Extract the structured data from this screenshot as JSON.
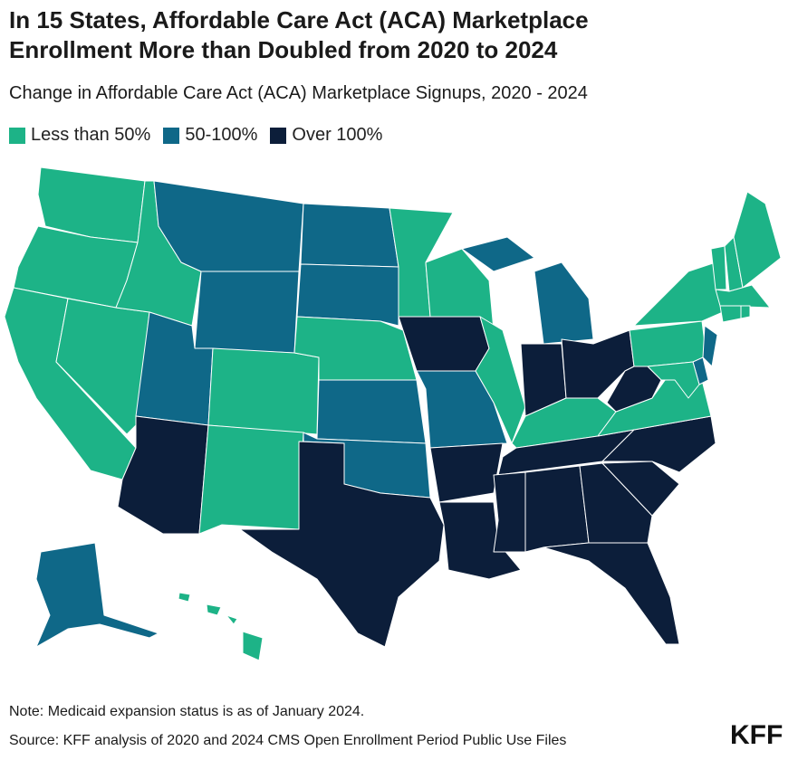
{
  "header": {
    "title_lines": [
      "In 15 States, Affordable Care Act (ACA) Marketplace",
      "Enrollment More than Doubled from 2020 to 2024"
    ],
    "subtitle": "Change in Affordable Care Act (ACA) Marketplace Signups, 2020 - 2024"
  },
  "map": {
    "legend": [
      {
        "name": "Less than 50%",
        "color": "#1db387"
      },
      {
        "name": "50-100%",
        "color": "#0f6888"
      },
      {
        "name": "Over 100%",
        "color": "#0c1e3a"
      }
    ],
    "state_groups": [
      0,
      0,
      0,
      0,
      0,
      1,
      1,
      1,
      2,
      0,
      0,
      1,
      1,
      0,
      1,
      1,
      2,
      0,
      2,
      1,
      2,
      2,
      0,
      0,
      1,
      2,
      2,
      0,
      2,
      2,
      2,
      2,
      2,
      2,
      2,
      0,
      2,
      0,
      0,
      1,
      1,
      0,
      0,
      0,
      0,
      0,
      0,
      0,
      1,
      0
    ]
  },
  "footer": {
    "note": "Note: Medicaid expansion status is as of January 2024.",
    "source": "Source: KFF analysis of 2020 and 2024 CMS Open Enrollment Period Public Use Files",
    "logo": "KFF"
  }
}
